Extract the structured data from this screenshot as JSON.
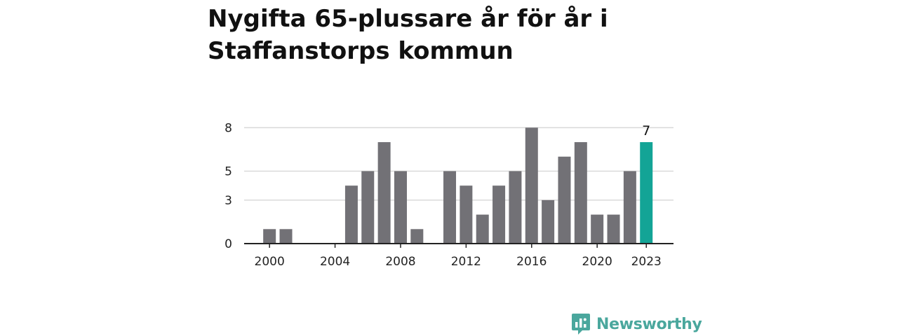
{
  "chart_data": {
    "type": "bar",
    "title": "Nygifta 65-plussare år för år i Staffanstorps kommun",
    "x": [
      2000,
      2001,
      2002,
      2003,
      2004,
      2005,
      2006,
      2007,
      2008,
      2009,
      2010,
      2011,
      2012,
      2013,
      2014,
      2015,
      2016,
      2017,
      2018,
      2019,
      2020,
      2021,
      2022,
      2023
    ],
    "values": [
      1,
      1,
      0,
      0,
      0,
      4,
      5,
      7,
      5,
      1,
      0,
      5,
      4,
      2,
      4,
      5,
      8,
      3,
      6,
      7,
      2,
      2,
      5,
      7
    ],
    "x_tick_labels": [
      "2000",
      "2004",
      "2008",
      "2012",
      "2016",
      "2020",
      "2023"
    ],
    "y_tick_labels": [
      "0",
      "3",
      "5",
      "8"
    ],
    "ylim": [
      0,
      8
    ],
    "highlight": {
      "x": 2023,
      "label": "7"
    },
    "grid": true,
    "colors": {
      "bar": "#727176",
      "highlight": "#13a496",
      "grid": "#d9d9d9",
      "axis": "#222222"
    }
  },
  "brand": {
    "name": "Newsworthy",
    "icon": "newsworthy-logo-icon",
    "color": "#4aa79d"
  }
}
